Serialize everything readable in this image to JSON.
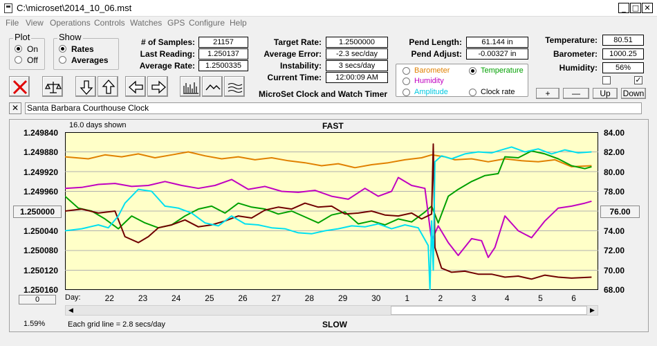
{
  "window": {
    "title": "C:\\microset\\2014_10_06.mst",
    "minimize_glyph": "_",
    "maximize_glyph": "□",
    "close_glyph": "✕"
  },
  "menu": [
    "File",
    "View",
    "Operations",
    "Controls",
    "Watches",
    "GPS",
    "Configure",
    "Help"
  ],
  "plot_group": {
    "title": "Plot",
    "options": [
      "On",
      "Off"
    ],
    "selected": "On"
  },
  "show_group": {
    "title": "Show",
    "options": [
      "Rates",
      "Averages"
    ],
    "selected": "Rates"
  },
  "stats": {
    "samples_label": "# of Samples:",
    "samples": "21157",
    "last_reading_label": "Last Reading:",
    "last_reading": "1.250137",
    "average_rate_label": "Average Rate:",
    "average_rate": "1.2500335",
    "target_rate_label": "Target Rate:",
    "target_rate": "1.2500000",
    "average_error_label": "Average Error:",
    "average_error": "-2.3 sec/day",
    "instability_label": "Instability:",
    "instability": "3 secs/day",
    "current_time_label": "Current Time:",
    "current_time": "12:00:09 AM",
    "pend_length_label": "Pend Length:",
    "pend_length": "61.144 in",
    "pend_adjust_label": "Pend Adjust:",
    "pend_adjust": "-0.00327 in",
    "temperature_label": "Temperature:",
    "temperature": "80.51",
    "barometer_label": "Barometer:",
    "barometer": "1000.25",
    "humidity_label": "Humidity:",
    "humidity": "56%"
  },
  "app_caption": "MicroSet Clock and Watch Timer",
  "sensor_options": [
    {
      "label": "Barometer",
      "color": "#e08000",
      "selected": false
    },
    {
      "label": "Temperature",
      "color": "#00a000",
      "selected": true
    },
    {
      "label": "Humidity",
      "color": "#c000c0",
      "selected": false
    },
    {
      "label": "Clock rate",
      "color": "#000000",
      "selected": false
    },
    {
      "label": "Amplitude",
      "color": "#00c8e0",
      "selected": false
    }
  ],
  "scale_buttons": {
    "plus": "+",
    "minus": "—",
    "up": "Up",
    "down": "Down"
  },
  "checkboxes": [
    false,
    true
  ],
  "clock_name": "Santa Barbara Courthouse Clock",
  "clear_glyph": "✕",
  "chart": {
    "days_shown": "16.0 days shown",
    "fast_label": "FAST",
    "slow_label": "SLOW",
    "day_label": "Day:",
    "grid_note": "Each grid line = 2.8 secs/day",
    "percent": "1.59%",
    "center_button": "1.250000",
    "right_button": "76.00",
    "zero_button": "0"
  },
  "chart_data": {
    "type": "line",
    "left_axis_ticks": [
      "1.249840",
      "1.249880",
      "1.249920",
      "1.249960",
      "1.250000",
      "1.250040",
      "1.250080",
      "1.250120",
      "1.250160"
    ],
    "right_axis_ticks": [
      "84.00",
      "82.00",
      "80.00",
      "78.00",
      "76.00",
      "74.00",
      "72.00",
      "70.00",
      "68.00"
    ],
    "x_ticks": [
      "22",
      "23",
      "24",
      "25",
      "26",
      "27",
      "28",
      "29",
      "30",
      "1",
      "2",
      "3",
      "4",
      "5",
      "6"
    ],
    "x_range": [
      21.8,
      37.8
    ],
    "right_range": [
      68,
      84
    ],
    "series": [
      {
        "key": "barometer",
        "color": "#e08000",
        "axis": "right",
        "x": [
          21.8,
          22.5,
          23.0,
          23.5,
          24.0,
          24.5,
          25.0,
          25.5,
          26.0,
          26.5,
          27.0,
          27.5,
          28.0,
          28.5,
          29.0,
          29.5,
          30.0,
          30.5,
          31.0,
          31.5,
          32.0,
          32.5,
          32.8,
          33.2,
          33.5,
          34.0,
          34.5,
          35.0,
          35.5,
          36.0,
          36.5,
          37.0,
          37.6
        ],
        "y": [
          81.5,
          81.3,
          81.7,
          81.5,
          81.8,
          81.4,
          81.7,
          82.0,
          81.6,
          81.3,
          81.5,
          81.2,
          81.4,
          81.1,
          80.9,
          80.6,
          80.8,
          80.4,
          80.7,
          80.9,
          81.2,
          81.4,
          81.7,
          81.5,
          81.2,
          81.3,
          81.0,
          81.3,
          81.1,
          81.0,
          81.2,
          80.5,
          80.6
        ]
      },
      {
        "key": "temperature",
        "color": "#00a000",
        "axis": "right",
        "x": [
          21.8,
          22.2,
          22.6,
          23.0,
          23.4,
          23.8,
          24.2,
          24.6,
          25.0,
          25.4,
          25.8,
          26.2,
          26.6,
          27.0,
          27.4,
          27.8,
          28.2,
          28.6,
          29.0,
          29.4,
          29.8,
          30.2,
          30.6,
          31.0,
          31.4,
          31.8,
          32.2,
          32.6,
          32.8,
          33.0,
          33.3,
          33.6,
          34.0,
          34.4,
          34.8,
          35.0,
          35.4,
          35.8,
          36.2,
          36.6,
          37.0,
          37.4,
          37.6
        ],
        "y": [
          77.5,
          76.3,
          76.0,
          75.2,
          74.2,
          75.5,
          74.8,
          74.3,
          74.6,
          75.5,
          76.2,
          76.5,
          75.8,
          76.8,
          76.4,
          76.2,
          75.7,
          76.0,
          75.4,
          74.8,
          75.6,
          75.9,
          74.7,
          75.0,
          74.6,
          75.2,
          74.9,
          75.9,
          76.5,
          74.8,
          77.5,
          78.2,
          79.0,
          79.6,
          79.8,
          81.5,
          81.4,
          82.1,
          81.8,
          81.3,
          80.6,
          80.3,
          80.5
        ]
      },
      {
        "key": "humidity",
        "color": "#c000c0",
        "axis": "right",
        "x": [
          21.8,
          22.3,
          22.8,
          23.3,
          23.8,
          24.3,
          24.8,
          25.3,
          25.8,
          26.3,
          26.8,
          27.3,
          27.8,
          28.3,
          28.8,
          29.3,
          29.8,
          30.3,
          30.8,
          31.2,
          31.6,
          31.8,
          32.2,
          32.6,
          32.8,
          33.0,
          33.3,
          33.6,
          34.0,
          34.3,
          34.5,
          34.7,
          35.0,
          35.4,
          35.8,
          36.2,
          36.6,
          37.0,
          37.4,
          37.6
        ],
        "y": [
          78.3,
          78.4,
          78.7,
          78.8,
          78.5,
          78.6,
          79.0,
          78.6,
          78.3,
          78.6,
          79.2,
          78.2,
          78.5,
          78.0,
          77.9,
          78.1,
          77.5,
          77.2,
          78.3,
          77.5,
          78.0,
          79.4,
          78.6,
          78.3,
          73.0,
          74.5,
          72.8,
          71.5,
          73.2,
          73.0,
          71.3,
          72.3,
          75.5,
          74.0,
          73.3,
          75.0,
          76.3,
          76.5,
          76.8,
          77.0
        ]
      },
      {
        "key": "clock_rate",
        "color": "#700000",
        "axis": "right",
        "x": [
          21.8,
          22.3,
          22.8,
          23.3,
          23.6,
          24.0,
          24.3,
          24.6,
          25.0,
          25.4,
          25.8,
          26.2,
          26.6,
          27.0,
          27.4,
          27.8,
          28.2,
          28.6,
          29.0,
          29.4,
          29.8,
          30.2,
          30.6,
          31.0,
          31.4,
          31.8,
          32.2,
          32.5,
          32.8,
          32.85,
          32.9,
          33.1,
          33.4,
          33.8,
          34.2,
          34.6,
          35.0,
          35.4,
          35.8,
          36.2,
          36.6,
          37.0,
          37.6
        ],
        "y": [
          76.0,
          76.2,
          75.8,
          76.0,
          73.4,
          72.8,
          73.4,
          74.3,
          74.6,
          75.1,
          74.4,
          74.6,
          75.0,
          75.5,
          75.3,
          76.1,
          76.4,
          76.2,
          76.8,
          76.4,
          76.5,
          75.7,
          75.8,
          76.0,
          75.6,
          75.5,
          75.8,
          75.2,
          75.7,
          82.8,
          72.3,
          70.2,
          69.8,
          69.9,
          69.6,
          69.6,
          69.3,
          69.4,
          69.1,
          69.5,
          69.3,
          69.2,
          69.3
        ]
      },
      {
        "key": "amplitude",
        "color": "#00e0f0",
        "axis": "right",
        "x": [
          21.8,
          22.3,
          22.8,
          23.1,
          23.4,
          23.6,
          24.0,
          24.4,
          24.8,
          25.2,
          25.6,
          26.0,
          26.4,
          26.8,
          27.2,
          27.6,
          28.0,
          28.4,
          28.8,
          29.2,
          29.6,
          30.0,
          30.4,
          30.8,
          31.2,
          31.6,
          32.0,
          32.4,
          32.7,
          32.75,
          32.8,
          32.85,
          32.9,
          33.1,
          33.4,
          33.8,
          34.2,
          34.6,
          35.0,
          35.2,
          35.6,
          36.0,
          36.4,
          36.8,
          37.2,
          37.6
        ],
        "y": [
          74.0,
          74.2,
          74.6,
          74.3,
          75.5,
          76.8,
          78.2,
          78.0,
          76.5,
          76.3,
          75.8,
          74.8,
          74.5,
          75.5,
          74.7,
          74.6,
          74.3,
          74.2,
          73.8,
          73.7,
          74.0,
          74.2,
          74.5,
          74.4,
          74.7,
          74.2,
          74.6,
          74.3,
          72.5,
          68.0,
          75.0,
          70.0,
          81.0,
          81.6,
          81.3,
          81.8,
          82.0,
          81.9,
          82.3,
          82.5,
          82.0,
          82.3,
          81.8,
          82.2,
          81.9,
          82.0
        ]
      }
    ]
  }
}
